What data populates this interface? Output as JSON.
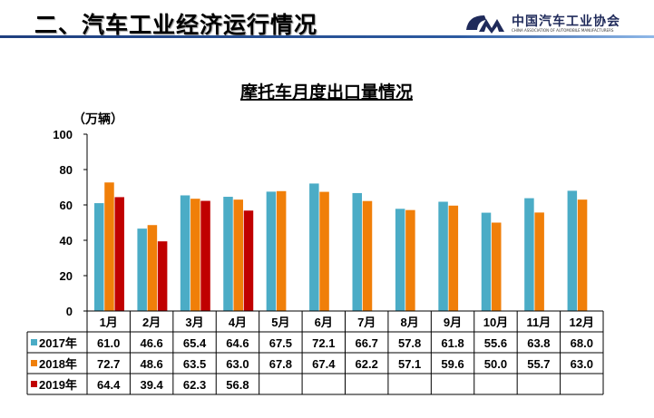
{
  "header": {
    "title": "二、汽车工业经济运行情况"
  },
  "logo": {
    "name": "中国汽车工业协会",
    "subtitle": "CHINA ASSOCIATION OF AUTOMOBILE MANUFACTURERS",
    "mark": "CM"
  },
  "chart_data": {
    "type": "bar",
    "title": "摩托车月度出口量情况",
    "ylabel": "（万辆）",
    "ylim": [
      0,
      100
    ],
    "yticks": [
      0,
      20,
      40,
      60,
      80,
      100
    ],
    "grid": false,
    "legend": "data-table",
    "categories": [
      "1月",
      "2月",
      "3月",
      "4月",
      "5月",
      "6月",
      "7月",
      "8月",
      "9月",
      "10月",
      "11月",
      "12月"
    ],
    "series": [
      {
        "name": "2017年",
        "color": "#4bacc6",
        "values": [
          61.0,
          46.6,
          65.4,
          64.6,
          67.5,
          72.1,
          66.7,
          57.8,
          61.8,
          55.6,
          63.8,
          68.0
        ]
      },
      {
        "name": "2018年",
        "color": "#f07f09",
        "values": [
          72.7,
          48.6,
          63.5,
          63.0,
          67.8,
          67.4,
          62.2,
          57.1,
          59.6,
          50.0,
          55.7,
          63.0
        ]
      },
      {
        "name": "2019年",
        "color": "#c00000",
        "values": [
          64.4,
          39.4,
          62.3,
          56.8,
          null,
          null,
          null,
          null,
          null,
          null,
          null,
          null
        ]
      }
    ]
  }
}
